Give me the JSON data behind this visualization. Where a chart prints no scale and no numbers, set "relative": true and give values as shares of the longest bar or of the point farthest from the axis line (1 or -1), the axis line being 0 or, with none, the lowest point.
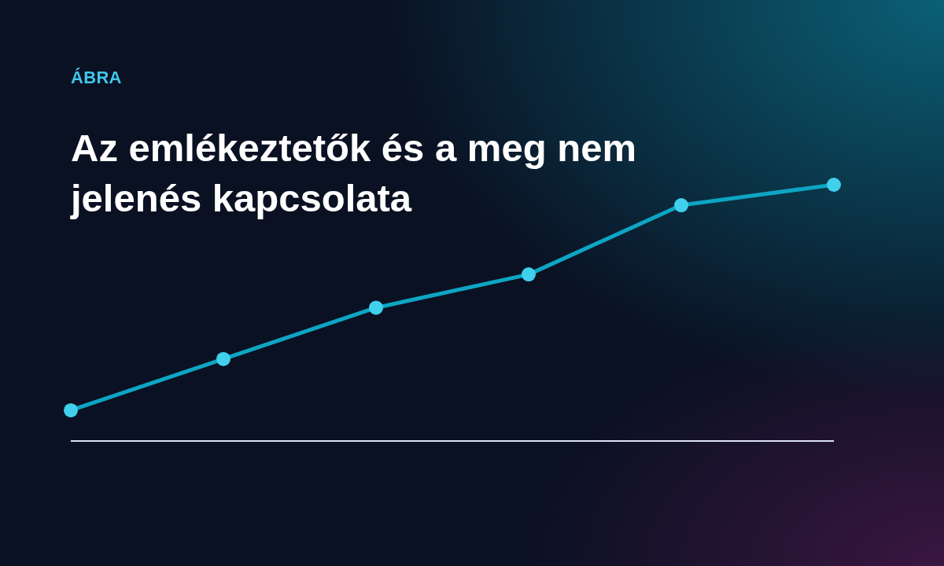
{
  "chart_data": {
    "type": "line",
    "subtitle": "ÁBRA",
    "title": "Az emlékeztetők és a meg nem jelenés kapcsolata",
    "categories": [
      null,
      null,
      null,
      null,
      null,
      null
    ],
    "values": [
      0.12,
      0.32,
      0.52,
      0.65,
      0.92,
      1
    ],
    "color": "#0ea5c4",
    "relative": true,
    "marker": "circle",
    "legend": false
  }
}
